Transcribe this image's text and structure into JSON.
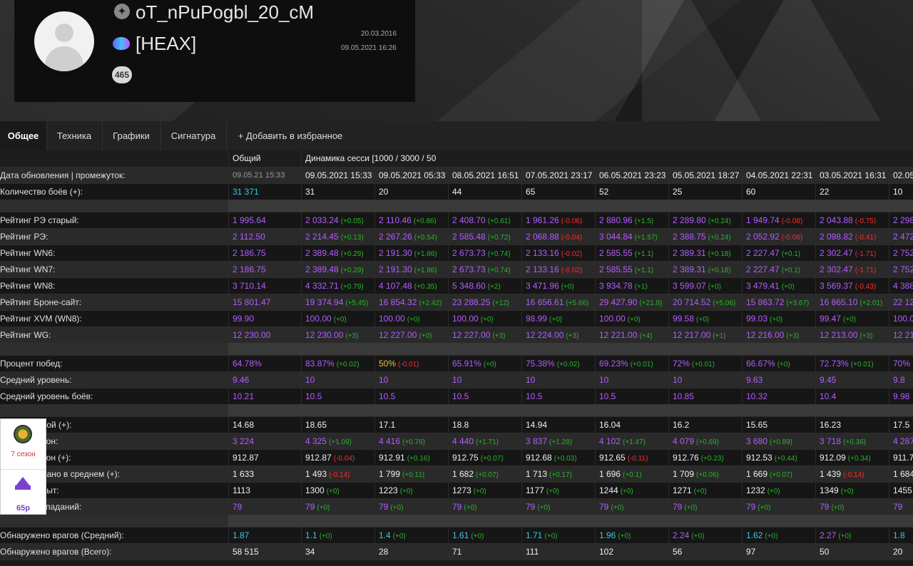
{
  "profile": {
    "nickname": "oT_nPuPogbl_20_cM",
    "clan": "[HEAX]",
    "badge": "465",
    "tank_icon": "tank-emblem-icon",
    "clan_icon": "clan-logo-icon",
    "date_registered": "20.03.2016",
    "date_last": "09.05.2021 16:26"
  },
  "tabs": [
    "Общее",
    "Техника",
    "Графики",
    "Сигнатура",
    "+ Добавить в избранное"
  ],
  "table": {
    "header": [
      "Общий",
      "Динамика сесси [1000 / 3000 / 50"
    ],
    "dates_label": "Дата обновления | промежуток:",
    "dates": [
      "09.05.21 15:33",
      "09.05.2021 15:33",
      "09.05.2021 05:33",
      "08.05.2021 16:51",
      "07.05.2021 23:17",
      "06.05.2021 23:23",
      "05.05.2021 18:27",
      "04.05.2021 22:31",
      "03.05.2021 16:31",
      "02.05"
    ],
    "groups": [
      [
        {
          "label": "Количество боёв (+):",
          "color": "white",
          "cells": [
            [
              "31 371",
              "",
              "cyan"
            ],
            [
              "31",
              ""
            ],
            [
              "20",
              ""
            ],
            [
              "44",
              ""
            ],
            [
              "65",
              ""
            ],
            [
              "52",
              ""
            ],
            [
              "25",
              ""
            ],
            [
              "60",
              ""
            ],
            [
              "22",
              ""
            ],
            [
              "10",
              ""
            ]
          ]
        }
      ],
      [
        {
          "label": "Рейтинг РЭ старый:",
          "color": "purple",
          "cells": [
            [
              "1 995.64",
              ""
            ],
            [
              "2 033.24",
              "(+0.05)"
            ],
            [
              "2 110.46",
              "(+0.86)"
            ],
            [
              "2 408.70",
              "(+0.61)"
            ],
            [
              "1 961.26",
              "(-0.06)"
            ],
            [
              "2 880.96",
              "(+1.5)"
            ],
            [
              "2 289.80",
              "(+0.24)"
            ],
            [
              "1 949.74",
              "(-0.08)"
            ],
            [
              "2 043.88",
              "(-0.75)"
            ],
            [
              "2 298",
              ""
            ]
          ]
        },
        {
          "label": "Рейтинг РЭ:",
          "color": "purple",
          "cells": [
            [
              "2 112.50",
              ""
            ],
            [
              "2 214.45",
              "(+0.13)"
            ],
            [
              "2 267.26",
              "(+0.54)"
            ],
            [
              "2 585.48",
              "(+0.72)"
            ],
            [
              "2 068.88",
              "(-0.04)"
            ],
            [
              "3 044.84",
              "(+1.57)"
            ],
            [
              "2 388.75",
              "(+0.24)"
            ],
            [
              "2 052.92",
              "(-0.06)"
            ],
            [
              "2 098.82",
              "(-0.41)"
            ],
            [
              "2 472",
              ""
            ]
          ]
        },
        {
          "label": "Рейтинг WN6:",
          "color": "purple",
          "cells": [
            [
              "2 186.75",
              ""
            ],
            [
              "2 389.48",
              "(+0.29)"
            ],
            [
              "2 191.30",
              "(+1.86)"
            ],
            [
              "2 673.73",
              "(+0.74)"
            ],
            [
              "2 133.16",
              "(-0.02)"
            ],
            [
              "2 585.55",
              "(+1.1)"
            ],
            [
              "2 389.31",
              "(+0.18)"
            ],
            [
              "2 227.47",
              "(+0.1)"
            ],
            [
              "2 302.47",
              "(-1.71)"
            ],
            [
              "2 752",
              ""
            ]
          ]
        },
        {
          "label": "Рейтинг WN7:",
          "color": "purple",
          "cells": [
            [
              "2 186.75",
              ""
            ],
            [
              "2 389.48",
              "(+0.29)"
            ],
            [
              "2 191.30",
              "(+1.86)"
            ],
            [
              "2 673.73",
              "(+0.74)"
            ],
            [
              "2 133.16",
              "(-0.02)"
            ],
            [
              "2 585.55",
              "(+1.1)"
            ],
            [
              "2 389.31",
              "(+0.18)"
            ],
            [
              "2 227.47",
              "(+0.1)"
            ],
            [
              "2 302.47",
              "(-1.71)"
            ],
            [
              "2 752",
              ""
            ]
          ]
        },
        {
          "label": "Рейтинг WN8:",
          "color": "purple",
          "cells": [
            [
              "3 710.14",
              ""
            ],
            [
              "4 332.71",
              "(+0.79)"
            ],
            [
              "4 107.48",
              "(+0.35)"
            ],
            [
              "5 348.60",
              "(+2)"
            ],
            [
              "3 471.96",
              "(+0)"
            ],
            [
              "3 934.78",
              "(+1)"
            ],
            [
              "3 599.07",
              "(+0)"
            ],
            [
              "3 479.41",
              "(+0)"
            ],
            [
              "3 569.37",
              "(-0.43)"
            ],
            [
              "4 388",
              ""
            ]
          ]
        },
        {
          "label": "Рейтинг Броне-сайт:",
          "color": "purple",
          "cells": [
            [
              "15 801.47",
              ""
            ],
            [
              "19 374.94",
              "(+5.45)"
            ],
            [
              "16 854.32",
              "(+2.42)"
            ],
            [
              "23 288.25",
              "(+12)"
            ],
            [
              "16 656.61",
              "(+5.66)"
            ],
            [
              "29 427.90",
              "(+21.9)"
            ],
            [
              "20 714.52",
              "(+5.06)"
            ],
            [
              "15 863.72",
              "(+3.67)"
            ],
            [
              "16 865.10",
              "(+2.01)"
            ],
            [
              "22 12",
              ""
            ]
          ]
        },
        {
          "label": "Рейтинг XVM (WN8):",
          "color": "purple",
          "cells": [
            [
              "99.90",
              ""
            ],
            [
              "100.00",
              "(+0)"
            ],
            [
              "100.00",
              "(+0)"
            ],
            [
              "100.00",
              "(+0)"
            ],
            [
              "98.99",
              "(+0)"
            ],
            [
              "100.00",
              "(+0)"
            ],
            [
              "99.58",
              "(+0)"
            ],
            [
              "99.03",
              "(+0)"
            ],
            [
              "99.47",
              "(+0)"
            ],
            [
              "100.0",
              ""
            ]
          ]
        },
        {
          "label": "Рейтинг WG:",
          "color": "purple",
          "cells": [
            [
              "12 230.00",
              ""
            ],
            [
              "12 230.00",
              "(+3)"
            ],
            [
              "12 227.00",
              "(+0)"
            ],
            [
              "12 227.00",
              "(+3)"
            ],
            [
              "12 224.00",
              "(+3)"
            ],
            [
              "12 221.00",
              "(+4)"
            ],
            [
              "12 217.00",
              "(+1)"
            ],
            [
              "12 216.00",
              "(+3)"
            ],
            [
              "12 213.00",
              "(+3)"
            ],
            [
              "12 21",
              ""
            ]
          ]
        }
      ],
      [
        {
          "label": "Процент побед:",
          "color": "purple",
          "cells": [
            [
              "64.78%",
              ""
            ],
            [
              "83.87%",
              "(+0.02)"
            ],
            [
              "50%",
              "(-0.01)",
              "yellow"
            ],
            [
              "65.91%",
              "(+0)"
            ],
            [
              "75.38%",
              "(+0.02)"
            ],
            [
              "69.23%",
              "(+0.01)"
            ],
            [
              "72%",
              "(+0.01)"
            ],
            [
              "66.67%",
              "(+0)"
            ],
            [
              "72.73%",
              "(+0.01)"
            ],
            [
              "70%",
              ""
            ]
          ]
        },
        {
          "label": "Средний уровень:",
          "color": "purple",
          "cells": [
            [
              "9.46",
              ""
            ],
            [
              "10",
              ""
            ],
            [
              "10",
              ""
            ],
            [
              "10",
              ""
            ],
            [
              "10",
              ""
            ],
            [
              "10",
              ""
            ],
            [
              "10",
              ""
            ],
            [
              "9.63",
              ""
            ],
            [
              "9.45",
              ""
            ],
            [
              "9.8",
              ""
            ]
          ]
        },
        {
          "label": "Средний уровень боёв:",
          "color": "purple",
          "cells": [
            [
              "10.21",
              ""
            ],
            [
              "10.5",
              ""
            ],
            [
              "10.5",
              ""
            ],
            [
              "10.5",
              ""
            ],
            [
              "10.5",
              ""
            ],
            [
              "10.5",
              ""
            ],
            [
              "10.85",
              ""
            ],
            [
              "10.32",
              ""
            ],
            [
              "10.4",
              ""
            ],
            [
              "9.98",
              ""
            ]
          ]
        }
      ],
      [
        {
          "label": "Фрагов за бой (+):",
          "color": "white",
          "cells": [
            [
              "14.68",
              ""
            ],
            [
              "18.65",
              ""
            ],
            [
              "17.1",
              ""
            ],
            [
              "18.8",
              ""
            ],
            [
              "14.94",
              ""
            ],
            [
              "16.04",
              ""
            ],
            [
              "16.2",
              ""
            ],
            [
              "15.65",
              ""
            ],
            [
              "16.23",
              ""
            ],
            [
              "17.5",
              ""
            ]
          ]
        },
        {
          "label": "Средний урон:",
          "color": "purple",
          "cells": [
            [
              "3 224",
              ""
            ],
            [
              "4 325",
              "(+1.09)"
            ],
            [
              "4 416",
              "(+0.76)"
            ],
            [
              "4 440",
              "(+1.71)"
            ],
            [
              "3 837",
              "(+1.28)"
            ],
            [
              "4 102",
              "(+1.47)"
            ],
            [
              "4 079",
              "(+0.69)"
            ],
            [
              "3 680",
              "(+0.89)"
            ],
            [
              "3 718",
              "(+0.36)"
            ],
            [
              "4 287",
              ""
            ]
          ]
        },
        {
          "label": "Средний урон (+):",
          "color": "white",
          "cells": [
            [
              "912.87",
              ""
            ],
            [
              "912.87",
              "(-0.04)"
            ],
            [
              "912.91",
              "(+0.16)"
            ],
            [
              "912.75",
              "(+0.07)"
            ],
            [
              "912.68",
              "(+0.03)"
            ],
            [
              "912.65",
              "(-0.11)"
            ],
            [
              "912.76",
              "(+0.23)"
            ],
            [
              "912.53",
              "(+0.44)"
            ],
            [
              "912.09",
              "(+0.34)"
            ],
            [
              "911.7",
              ""
            ]
          ]
        },
        {
          "label": "Заблокировано в среднем (+):",
          "color": "white",
          "cells": [
            [
              "1 633",
              ""
            ],
            [
              "1 493",
              "(-0.14)"
            ],
            [
              "1 799",
              "(+0.11)"
            ],
            [
              "1 682",
              "(+0.07)"
            ],
            [
              "1 713",
              "(+0.17)"
            ],
            [
              "1 696",
              "(+0.1)"
            ],
            [
              "1 709",
              "(+0.06)"
            ],
            [
              "1 669",
              "(+0.07)"
            ],
            [
              "1 439",
              "(-0.14)"
            ],
            [
              "1 684",
              ""
            ]
          ]
        },
        {
          "label": "Средний опыт:",
          "color": "white",
          "cells": [
            [
              "1113",
              ""
            ],
            [
              "1300",
              "(+0)"
            ],
            [
              "1223",
              "(+0)"
            ],
            [
              "1273",
              "(+0)"
            ],
            [
              "1177",
              "(+0)"
            ],
            [
              "1244",
              "(+0)"
            ],
            [
              "1271",
              "(+0)"
            ],
            [
              "1232",
              "(+0)"
            ],
            [
              "1349",
              "(+0)"
            ],
            [
              "1455",
              ""
            ]
          ]
        },
        {
          "label": "Процент попаданий:",
          "color": "purple",
          "cells": [
            [
              "79",
              ""
            ],
            [
              "79",
              "(+0)"
            ],
            [
              "79",
              "(+0)"
            ],
            [
              "79",
              "(+0)"
            ],
            [
              "79",
              "(+0)"
            ],
            [
              "79",
              "(+0)"
            ],
            [
              "79",
              "(+0)"
            ],
            [
              "79",
              "(+0)"
            ],
            [
              "79",
              "(+0)"
            ],
            [
              "79",
              ""
            ]
          ]
        }
      ],
      [
        {
          "label": "Обнаружено врагов (Средний):",
          "color": "cyan",
          "cells": [
            [
              "1.87",
              ""
            ],
            [
              "1.1",
              "(+0)"
            ],
            [
              "1.4",
              "(+0)"
            ],
            [
              "1.61",
              "(+0)"
            ],
            [
              "1.71",
              "(+0)"
            ],
            [
              "1.96",
              "(+0)"
            ],
            [
              "2.24",
              "(+0)",
              "purple"
            ],
            [
              "1.62",
              "(+0)"
            ],
            [
              "2.27",
              "(+0)",
              "purple"
            ],
            [
              "1.8",
              ""
            ]
          ]
        },
        {
          "label": "Обнаружено врагов (Всего):",
          "color": "white",
          "cells": [
            [
              "58 515",
              ""
            ],
            [
              "34",
              ""
            ],
            [
              "28",
              ""
            ],
            [
              "71",
              ""
            ],
            [
              "111",
              ""
            ],
            [
              "102",
              ""
            ],
            [
              "56",
              ""
            ],
            [
              "97",
              ""
            ],
            [
              "50",
              ""
            ],
            [
              "20",
              ""
            ]
          ]
        }
      ]
    ]
  },
  "widget": {
    "season": "7 сезон",
    "price": "65р"
  }
}
